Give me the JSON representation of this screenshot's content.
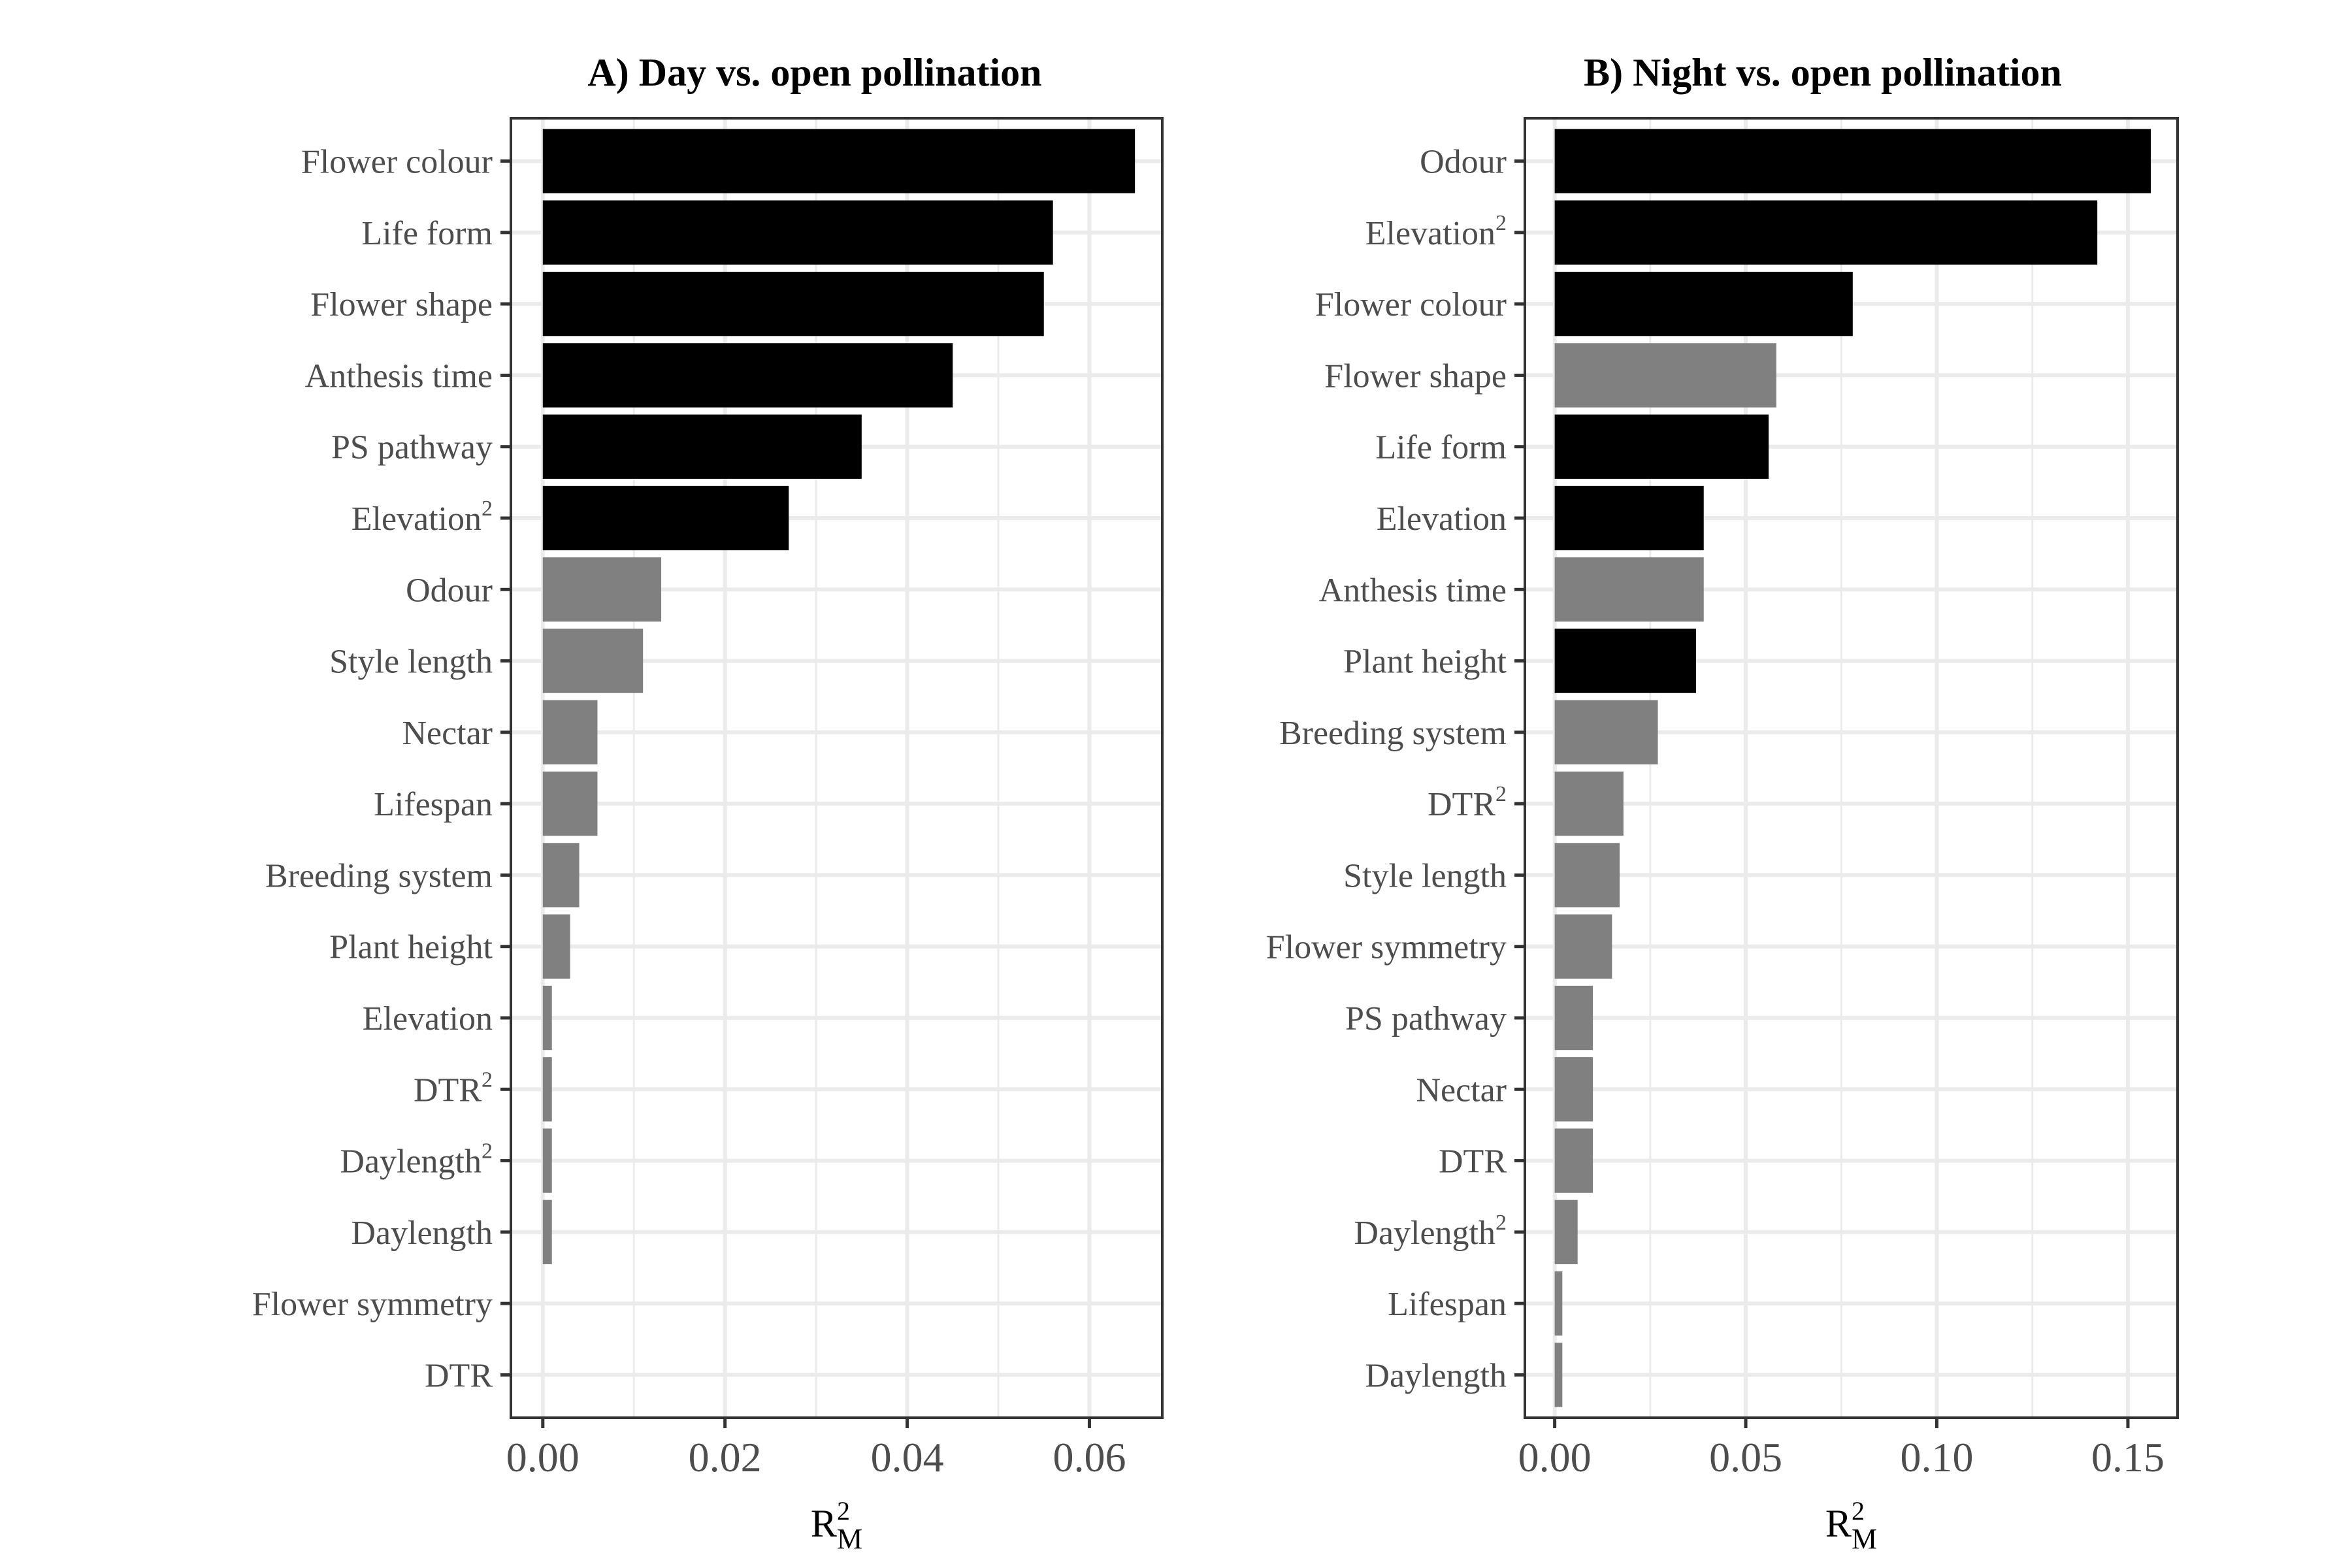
{
  "chart_data": [
    {
      "type": "bar",
      "orientation": "horizontal",
      "title": "A) Day vs. open pollination",
      "xlabel": {
        "base": "R",
        "superscript": "2",
        "subscript": "M"
      },
      "xlim": [
        -0.0035,
        0.068
      ],
      "xticks": [
        "0.00",
        "0.02",
        "0.04",
        "0.06"
      ],
      "xtick_values": [
        0,
        0.02,
        0.04,
        0.06
      ],
      "grid": true,
      "categories": [
        {
          "label": "Flower colour",
          "superscript": ""
        },
        {
          "label": "Life form",
          "superscript": ""
        },
        {
          "label": "Flower shape",
          "superscript": ""
        },
        {
          "label": "Anthesis time",
          "superscript": ""
        },
        {
          "label": "PS pathway",
          "superscript": ""
        },
        {
          "label": "Elevation",
          "superscript": "2"
        },
        {
          "label": "Odour",
          "superscript": ""
        },
        {
          "label": "Style length",
          "superscript": ""
        },
        {
          "label": "Nectar",
          "superscript": ""
        },
        {
          "label": "Lifespan",
          "superscript": ""
        },
        {
          "label": "Breeding system",
          "superscript": ""
        },
        {
          "label": "Plant height",
          "superscript": ""
        },
        {
          "label": "Elevation",
          "superscript": ""
        },
        {
          "label": "DTR",
          "superscript": "2"
        },
        {
          "label": "Daylength",
          "superscript": "2"
        },
        {
          "label": "Daylength",
          "superscript": ""
        },
        {
          "label": "Flower symmetry",
          "superscript": ""
        },
        {
          "label": "DTR",
          "superscript": ""
        }
      ],
      "values": [
        0.065,
        0.056,
        0.055,
        0.045,
        0.035,
        0.027,
        0.013,
        0.011,
        0.006,
        0.006,
        0.004,
        0.003,
        0.001,
        0.001,
        0.001,
        0.001,
        0.0,
        0.0
      ],
      "significant": [
        true,
        true,
        true,
        true,
        true,
        true,
        false,
        false,
        false,
        false,
        false,
        false,
        false,
        false,
        false,
        false,
        false,
        false
      ],
      "colors": {
        "significant": "#000000",
        "not_significant": "#808080"
      }
    },
    {
      "type": "bar",
      "orientation": "horizontal",
      "title": "B) Night vs. open pollination",
      "xlabel": {
        "base": "R",
        "superscript": "2",
        "subscript": "M"
      },
      "xlim": [
        -0.0078,
        0.163
      ],
      "xticks": [
        "0.00",
        "0.05",
        "0.10",
        "0.15"
      ],
      "xtick_values": [
        0,
        0.05,
        0.1,
        0.15
      ],
      "grid": true,
      "categories": [
        {
          "label": "Odour",
          "superscript": ""
        },
        {
          "label": "Elevation",
          "superscript": "2"
        },
        {
          "label": "Flower colour",
          "superscript": ""
        },
        {
          "label": "Flower shape",
          "superscript": ""
        },
        {
          "label": "Life form",
          "superscript": ""
        },
        {
          "label": "Elevation",
          "superscript": ""
        },
        {
          "label": "Anthesis time",
          "superscript": ""
        },
        {
          "label": "Plant height",
          "superscript": ""
        },
        {
          "label": "Breeding system",
          "superscript": ""
        },
        {
          "label": "DTR",
          "superscript": "2"
        },
        {
          "label": "Style length",
          "superscript": ""
        },
        {
          "label": "Flower symmetry",
          "superscript": ""
        },
        {
          "label": "PS pathway",
          "superscript": ""
        },
        {
          "label": "Nectar",
          "superscript": ""
        },
        {
          "label": "DTR",
          "superscript": ""
        },
        {
          "label": "Daylength",
          "superscript": "2"
        },
        {
          "label": "Lifespan",
          "superscript": ""
        },
        {
          "label": "Daylength",
          "superscript": ""
        }
      ],
      "values": [
        0.156,
        0.142,
        0.078,
        0.058,
        0.056,
        0.039,
        0.039,
        0.037,
        0.027,
        0.018,
        0.017,
        0.015,
        0.01,
        0.01,
        0.01,
        0.006,
        0.002,
        0.002
      ],
      "significant": [
        true,
        true,
        true,
        false,
        true,
        true,
        false,
        true,
        false,
        false,
        false,
        false,
        false,
        false,
        false,
        false,
        false,
        false
      ],
      "colors": {
        "significant": "#000000",
        "not_significant": "#808080"
      }
    }
  ]
}
